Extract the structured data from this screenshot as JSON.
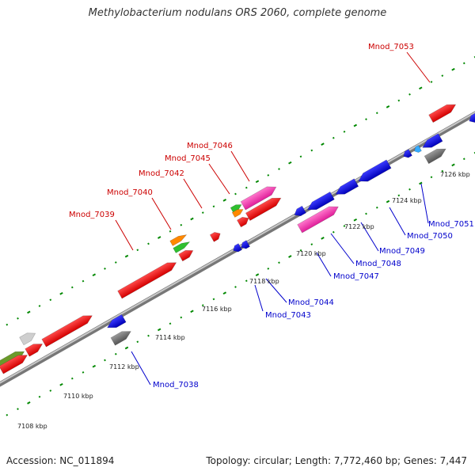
{
  "title": "Methylobacterium nodulans ORS 2060, complete genome",
  "footer": {
    "accession": "Accession: NC_011894",
    "topology": "Topology: circular; Length: 7,772,460 bp; Genes: 7,447"
  },
  "colors": {
    "forward_label": "#cc0000",
    "reverse_label": "#0000cc",
    "backbone": "#888888",
    "dots": "#008800"
  },
  "ticks": [
    {
      "label": "7108 kbp"
    },
    {
      "label": "7110 kbp"
    },
    {
      "label": "7112 kbp"
    },
    {
      "label": "7114 kbp"
    },
    {
      "label": "7116 kbp"
    },
    {
      "label": "7118 kbp"
    },
    {
      "label": "7120 kbp"
    },
    {
      "label": "7122 kbp"
    },
    {
      "label": "7124 kbp"
    },
    {
      "label": "7126 kbp"
    }
  ],
  "forward_genes": [
    {
      "label": "Mnod_7039"
    },
    {
      "label": "Mnod_7040"
    },
    {
      "label": "Mnod_7042"
    },
    {
      "label": "Mnod_7045"
    },
    {
      "label": "Mnod_7046"
    },
    {
      "label": "Mnod_7053"
    }
  ],
  "reverse_genes": [
    {
      "label": "Mnod_7038"
    },
    {
      "label": "Mnod_7043"
    },
    {
      "label": "Mnod_7044"
    },
    {
      "label": "Mnod_7047"
    },
    {
      "label": "Mnod_7048"
    },
    {
      "label": "Mnod_7049"
    },
    {
      "label": "Mnod_7050"
    },
    {
      "label": "Mnod_7051"
    }
  ]
}
